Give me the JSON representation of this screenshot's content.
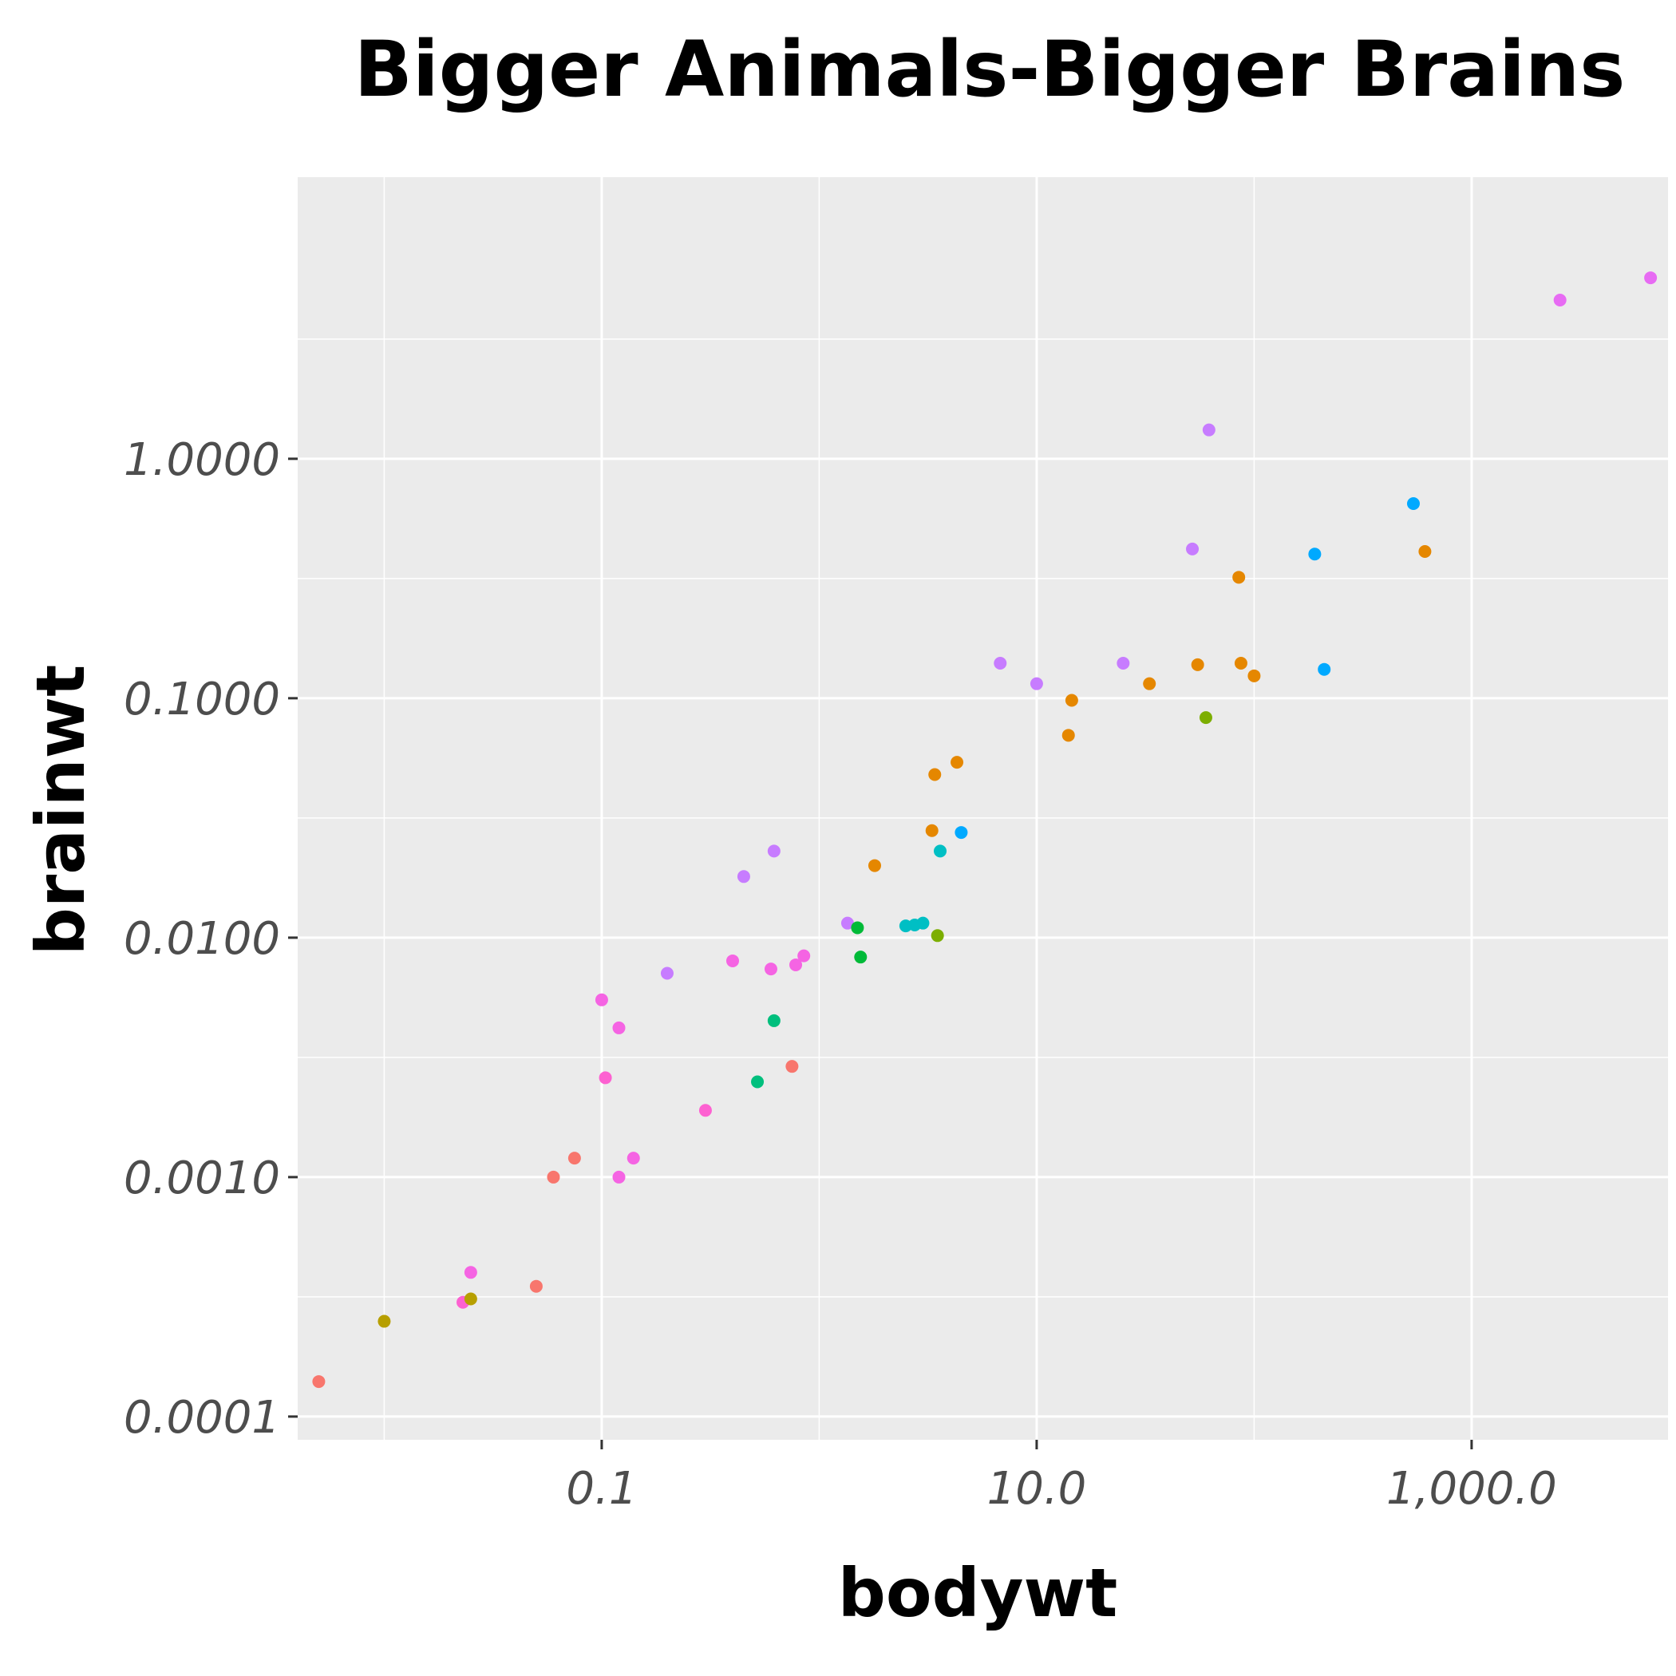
{
  "chart_data": {
    "type": "scatter",
    "title": "Bigger Animals-Bigger Brains",
    "xlabel": "bodywt",
    "ylabel": "brainwt",
    "x_scale": "log10",
    "y_scale": "log10",
    "xlim": [
      0.004,
      8000
    ],
    "ylim": [
      8e-05,
      15
    ],
    "x_ticks": [
      {
        "value": 0.1,
        "label": "0.1"
      },
      {
        "value": 10,
        "label": "10.0"
      },
      {
        "value": 1000,
        "label": "1,000.0"
      }
    ],
    "y_ticks": [
      {
        "value": 0.0001,
        "label": "0.0001"
      },
      {
        "value": 0.001,
        "label": "0.0010"
      },
      {
        "value": 0.01,
        "label": "0.0100"
      },
      {
        "value": 0.1,
        "label": "0.1000"
      },
      {
        "value": 1,
        "label": "1.0000"
      }
    ],
    "grid": true,
    "legend": "none",
    "points": [
      {
        "x": 0.005,
        "y": 0.00014,
        "color": "#f8766d"
      },
      {
        "x": 0.01,
        "y": 0.00025,
        "color": "#b79f00"
      },
      {
        "x": 0.023,
        "y": 0.0003,
        "color": "#fd61d1"
      },
      {
        "x": 0.025,
        "y": 0.00031,
        "color": "#b79f00"
      },
      {
        "x": 0.025,
        "y": 0.0004,
        "color": "#f564e3"
      },
      {
        "x": 0.05,
        "y": 0.00035,
        "color": "#f8766d"
      },
      {
        "x": 0.06,
        "y": 0.001,
        "color": "#f8766d"
      },
      {
        "x": 0.075,
        "y": 0.0012,
        "color": "#f8766d"
      },
      {
        "x": 0.12,
        "y": 0.001,
        "color": "#f564e3"
      },
      {
        "x": 0.14,
        "y": 0.0012,
        "color": "#f564e3"
      },
      {
        "x": 0.1,
        "y": 0.0055,
        "color": "#f564e3"
      },
      {
        "x": 0.104,
        "y": 0.0026,
        "color": "#fd61d1"
      },
      {
        "x": 0.12,
        "y": 0.0042,
        "color": "#f564e3"
      },
      {
        "x": 0.2,
        "y": 0.0071,
        "color": "#c77cff"
      },
      {
        "x": 0.3,
        "y": 0.0019,
        "color": "#fd61d1"
      },
      {
        "x": 0.4,
        "y": 0.008,
        "color": "#f564e3"
      },
      {
        "x": 0.45,
        "y": 0.018,
        "color": "#c77cff"
      },
      {
        "x": 0.52,
        "y": 0.0025,
        "color": "#00bf7d"
      },
      {
        "x": 0.6,
        "y": 0.0074,
        "color": "#f564e3"
      },
      {
        "x": 0.62,
        "y": 0.0045,
        "color": "#00bf7d"
      },
      {
        "x": 0.62,
        "y": 0.023,
        "color": "#c77cff"
      },
      {
        "x": 0.75,
        "y": 0.0029,
        "color": "#f8766d"
      },
      {
        "x": 0.78,
        "y": 0.0077,
        "color": "#f564e3"
      },
      {
        "x": 0.85,
        "y": 0.0084,
        "color": "#f564e3"
      },
      {
        "x": 1.35,
        "y": 0.0115,
        "color": "#c77cff"
      },
      {
        "x": 1.55,
        "y": 0.0083,
        "color": "#00ba38"
      },
      {
        "x": 1.5,
        "y": 0.011,
        "color": "#00ba38"
      },
      {
        "x": 1.8,
        "y": 0.02,
        "color": "#e58700"
      },
      {
        "x": 2.5,
        "y": 0.0112,
        "color": "#00bfc4"
      },
      {
        "x": 2.75,
        "y": 0.0113,
        "color": "#00bfc4"
      },
      {
        "x": 3,
        "y": 0.0115,
        "color": "#00bfc4"
      },
      {
        "x": 3.3,
        "y": 0.028,
        "color": "#e58700"
      },
      {
        "x": 3.4,
        "y": 0.048,
        "color": "#e58700"
      },
      {
        "x": 3.5,
        "y": 0.0102,
        "color": "#7cae00"
      },
      {
        "x": 3.6,
        "y": 0.023,
        "color": "#00bfc4"
      },
      {
        "x": 4.3,
        "y": 0.054,
        "color": "#e58700"
      },
      {
        "x": 4.5,
        "y": 0.0275,
        "color": "#00a9ff"
      },
      {
        "x": 6.8,
        "y": 0.14,
        "color": "#c77cff"
      },
      {
        "x": 10,
        "y": 0.115,
        "color": "#c77cff"
      },
      {
        "x": 14,
        "y": 0.07,
        "color": "#e58700"
      },
      {
        "x": 14.5,
        "y": 0.098,
        "color": "#e58700"
      },
      {
        "x": 25,
        "y": 0.14,
        "color": "#c77cff"
      },
      {
        "x": 33,
        "y": 0.115,
        "color": "#e58700"
      },
      {
        "x": 52,
        "y": 0.42,
        "color": "#c77cff"
      },
      {
        "x": 55,
        "y": 0.138,
        "color": "#e58700"
      },
      {
        "x": 60,
        "y": 0.083,
        "color": "#7cae00"
      },
      {
        "x": 62,
        "y": 1.32,
        "color": "#c77cff"
      },
      {
        "x": 85,
        "y": 0.32,
        "color": "#e58700"
      },
      {
        "x": 87,
        "y": 0.14,
        "color": "#e58700"
      },
      {
        "x": 100,
        "y": 0.124,
        "color": "#e58700"
      },
      {
        "x": 190,
        "y": 0.4,
        "color": "#00a9ff"
      },
      {
        "x": 210,
        "y": 0.132,
        "color": "#00a9ff"
      },
      {
        "x": 540,
        "y": 0.65,
        "color": "#00a9ff"
      },
      {
        "x": 610,
        "y": 0.41,
        "color": "#e58700"
      },
      {
        "x": 2550,
        "y": 4.6,
        "color": "#e76bf3"
      },
      {
        "x": 6650,
        "y": 5.7,
        "color": "#e76bf3"
      }
    ]
  }
}
